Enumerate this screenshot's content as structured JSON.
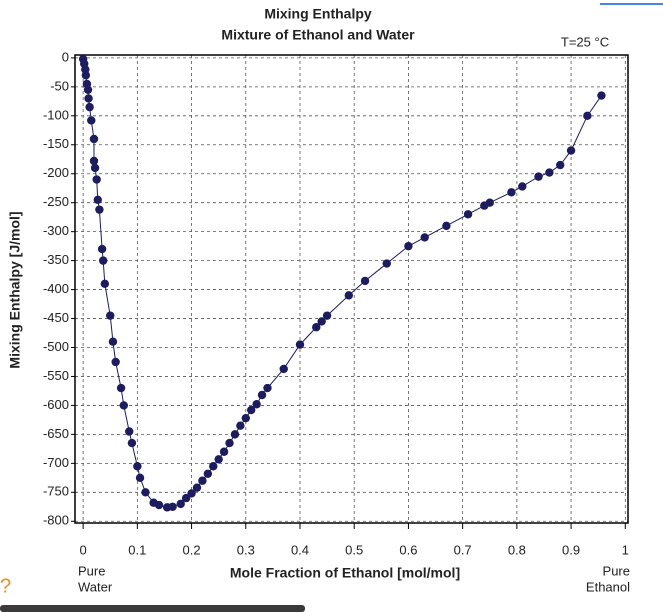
{
  "chart_data": {
    "type": "scatter",
    "title": "Mixing Enthalpy",
    "subtitle": "Mixture of Ethanol and Water",
    "annotation": "T=25 °C",
    "x_label": "Mole  Fraction of Ethanol  [mol/mol]",
    "y_label": "Mixing Enthalpy [J/mol]",
    "x_end_labels": {
      "left": [
        "Pure",
        "Water"
      ],
      "right": [
        "Pure",
        "Ethanol"
      ]
    },
    "xlim": [
      -0.015,
      1.005
    ],
    "ylim": [
      -803,
      5
    ],
    "xticks": [
      0,
      0.1,
      0.2,
      0.3,
      0.4,
      0.5,
      0.6,
      0.7,
      0.8,
      0.9,
      1
    ],
    "yticks": [
      0,
      -50,
      -100,
      -150,
      -200,
      -250,
      -300,
      -350,
      -400,
      -450,
      -500,
      -550,
      -600,
      -650,
      -700,
      -750,
      -800
    ],
    "grid": true,
    "series": [
      {
        "color": "#1c1c5e",
        "x": [
          0,
          0.002,
          0.004,
          0.005,
          0.007,
          0.009,
          0.01,
          0.012,
          0.015,
          0.02,
          0.02,
          0.022,
          0.025,
          0.027,
          0.03,
          0.035,
          0.037,
          0.04,
          0.05,
          0.055,
          0.06,
          0.07,
          0.075,
          0.085,
          0.09,
          0.1,
          0.105,
          0.115,
          0.13,
          0.14,
          0.155,
          0.165,
          0.18,
          0.19,
          0.2,
          0.21,
          0.22,
          0.23,
          0.24,
          0.25,
          0.26,
          0.27,
          0.28,
          0.29,
          0.3,
          0.31,
          0.32,
          0.33,
          0.34,
          0.37,
          0.4,
          0.43,
          0.44,
          0.45,
          0.49,
          0.52,
          0.56,
          0.6,
          0.63,
          0.67,
          0.71,
          0.74,
          0.75,
          0.79,
          0.81,
          0.84,
          0.86,
          0.88,
          0.9,
          0.93,
          0.956
        ],
        "values": [
          -2,
          -10,
          -20,
          -30,
          -45,
          -55,
          -70,
          -85,
          -108,
          -140,
          -178,
          -190,
          -210,
          -245,
          -262,
          -330,
          -350,
          -390,
          -445,
          -490,
          -525,
          -570,
          -600,
          -645,
          -665,
          -705,
          -725,
          -750,
          -768,
          -772,
          -776,
          -775,
          -770,
          -760,
          -752,
          -742,
          -730,
          -718,
          -705,
          -693,
          -680,
          -665,
          -650,
          -635,
          -622,
          -608,
          -598,
          -582,
          -570,
          -537,
          -495,
          -465,
          -455,
          -445,
          -410,
          -385,
          -355,
          -325,
          -310,
          -290,
          -270,
          -255,
          -250,
          -232,
          -222,
          -205,
          -198,
          -185,
          -160,
          -100,
          -65
        ]
      }
    ]
  },
  "ui": {
    "help": "?"
  }
}
